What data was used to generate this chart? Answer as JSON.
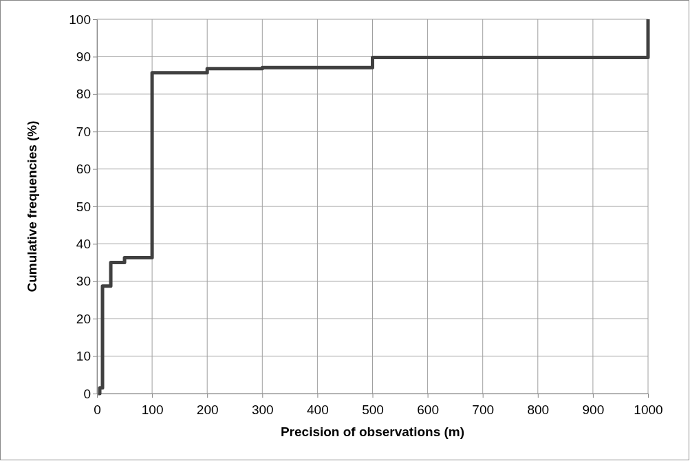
{
  "chart_data": {
    "type": "step",
    "xlabel": "Precision of observations (m)",
    "ylabel": "Cumulative frequencies (%)",
    "x": [
      2,
      5,
      10,
      25,
      50,
      100,
      200,
      300,
      500,
      1000
    ],
    "series": [
      {
        "color": "#404040",
        "values": [
          0,
          1.5,
          28.7,
          35,
          36.3,
          85.7,
          86.8,
          87.1,
          89.8,
          100
        ]
      }
    ],
    "xlim": [
      0,
      1000
    ],
    "xticks": [
      0,
      100,
      200,
      300,
      400,
      500,
      600,
      700,
      800,
      900,
      1000
    ],
    "ylim": [
      0,
      100
    ],
    "yticks": [
      0,
      10,
      20,
      30,
      40,
      50,
      60,
      70,
      80,
      90,
      100
    ],
    "grid": true
  }
}
